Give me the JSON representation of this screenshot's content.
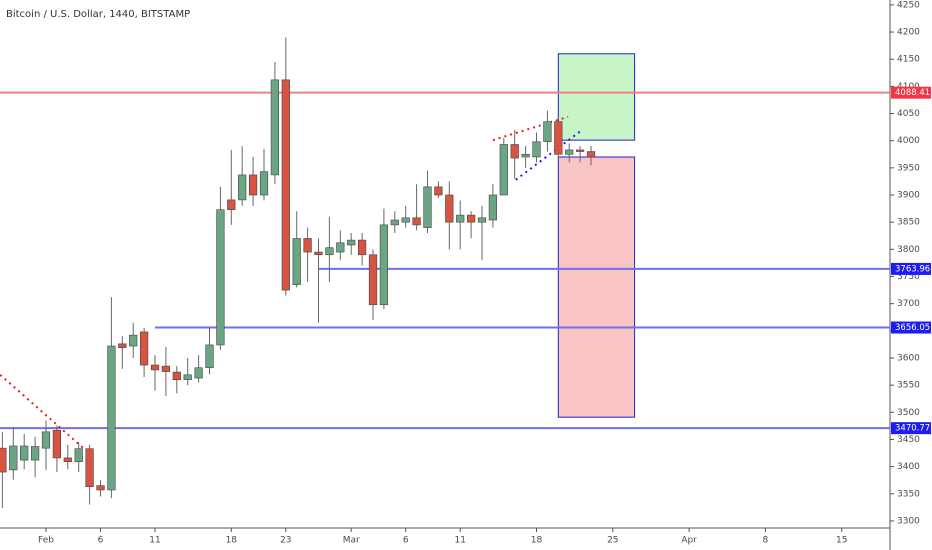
{
  "chart_data": {
    "type": "candlestick",
    "title": "Bitcoin / U.S. Dollar, 1440, BITSTAMP",
    "up_color": "#6ba583",
    "down_color": "#d75442",
    "x": [
      -4,
      -3,
      -2,
      -1,
      0,
      1,
      2,
      3,
      4,
      5,
      6,
      7,
      8,
      9,
      10,
      11,
      12,
      13,
      14,
      15,
      16,
      17,
      18,
      19,
      20,
      21,
      22,
      23,
      24,
      25,
      26,
      27,
      28,
      29,
      30,
      31,
      32,
      33,
      34,
      35,
      36,
      37,
      38,
      39,
      40,
      41,
      42,
      43,
      44,
      45,
      46,
      47,
      48,
      49,
      50
    ],
    "open": [
      3434,
      3394,
      3412,
      3412,
      3434,
      3467,
      3416,
      3409,
      3433,
      3365,
      3357,
      3626,
      3622,
      3648,
      3587,
      3585,
      3574,
      3560,
      3563,
      3582,
      3624,
      3891,
      3891,
      3937,
      3900,
      3937,
      4112,
      3735,
      3820,
      3795,
      3790,
      3795,
      3808,
      3817,
      3790,
      3698,
      3845,
      3850,
      3858,
      3840,
      3915,
      3900,
      3850,
      3863,
      3850,
      3854,
      3900,
      3993,
      3970,
      3970,
      3998,
      4035,
      3975,
      3983,
      3980
    ],
    "high": [
      3464,
      3473,
      3460,
      3455,
      3485,
      3476,
      3440,
      3445,
      3440,
      3375,
      3712,
      3640,
      3665,
      3655,
      3605,
      3620,
      3585,
      3600,
      3605,
      3655,
      3915,
      3983,
      3990,
      3970,
      3985,
      4145,
      4190,
      3870,
      3840,
      3820,
      3860,
      3835,
      3830,
      3830,
      3800,
      3875,
      3870,
      3880,
      3920,
      3945,
      3925,
      3925,
      3890,
      3870,
      3880,
      3920,
      4005,
      4020,
      3990,
      4015,
      4055,
      4045,
      3995,
      3990,
      3990
    ],
    "low": [
      3324,
      3376,
      3395,
      3380,
      3394,
      3390,
      3395,
      3390,
      3330,
      3345,
      3342,
      3580,
      3600,
      3565,
      3540,
      3530,
      3535,
      3550,
      3555,
      3570,
      3615,
      3845,
      3880,
      3880,
      3890,
      3920,
      3715,
      3730,
      3740,
      3665,
      3740,
      3780,
      3790,
      3770,
      3670,
      3690,
      3830,
      3840,
      3835,
      3830,
      3895,
      3800,
      3800,
      3820,
      3780,
      3840,
      3900,
      3930,
      3950,
      3960,
      3980,
      3965,
      3960,
      3960,
      3955
    ],
    "close": [
      3390,
      3438,
      3438,
      3437,
      3464,
      3416,
      3409,
      3433,
      3363,
      3357,
      3622,
      3619,
      3642,
      3587,
      3578,
      3575,
      3560,
      3569,
      3582,
      3624,
      3873,
      3873,
      3937,
      3900,
      3943,
      4112,
      3725,
      3820,
      3795,
      3790,
      3803,
      3812,
      3817,
      3790,
      3698,
      3845,
      3854,
      3858,
      3845,
      3915,
      3900,
      3850,
      3863,
      3850,
      3858,
      3900,
      3993,
      3968,
      3975,
      3998,
      4035,
      3975,
      3983,
      3980,
      3970
    ],
    "xlim": [
      -4.22,
      77.43
    ],
    "ylim": [
      3287,
      4259
    ],
    "xticks": [
      {
        "value": 0,
        "label": "Feb"
      },
      {
        "value": 5,
        "label": "6"
      },
      {
        "value": 10,
        "label": "11"
      },
      {
        "value": 17,
        "label": "18"
      },
      {
        "value": 22,
        "label": "23"
      },
      {
        "value": 28,
        "label": "Mar"
      },
      {
        "value": 33,
        "label": "6"
      },
      {
        "value": 38,
        "label": "11"
      },
      {
        "value": 45,
        "label": "18"
      },
      {
        "value": 52,
        "label": "25"
      },
      {
        "value": 59,
        "label": "Apr"
      },
      {
        "value": 66,
        "label": "8"
      },
      {
        "value": 73,
        "label": "15"
      }
    ],
    "yticks": [
      3300,
      3350,
      3400,
      3450,
      3500,
      3550,
      3600,
      3650,
      3700,
      3750,
      3800,
      3850,
      3900,
      3950,
      4000,
      4050,
      4100,
      4150,
      4200,
      4250
    ],
    "hlines": [
      {
        "value": 4088.41,
        "color": "#f08080",
        "label_color": "#f23645",
        "start": -4.22
      },
      {
        "value": 3763.96,
        "color": "#6f6ff0",
        "label_color": "#1d1df0",
        "start": 25
      },
      {
        "value": 3656.05,
        "color": "#6f6ff0",
        "label_color": "#1d1df0",
        "start": 10
      },
      {
        "value": 3470.77,
        "color": "#6f6ff0",
        "label_color": "#1d1df0",
        "start": -4.22
      }
    ],
    "boxes": [
      {
        "x": [
          47,
          54
        ],
        "y": [
          4001,
          4160
        ],
        "fill": "#c8f5c8",
        "stroke": "#2020d0"
      },
      {
        "x": [
          47,
          54
        ],
        "y": [
          3491,
          3970
        ],
        "fill": "#f9c4c4",
        "stroke": "#2020d0"
      }
    ],
    "trendlines": [
      {
        "x": [
          -4.2,
          3.6
        ],
        "y": [
          3569,
          3431
        ],
        "color": "#e02020"
      },
      {
        "x": [
          41.0,
          47.9
        ],
        "y": [
          4001,
          4044
        ],
        "color": "#e02020"
      },
      {
        "x": [
          43.1,
          49.2
        ],
        "y": [
          3928,
          4020
        ],
        "color": "#2020d0"
      }
    ]
  }
}
